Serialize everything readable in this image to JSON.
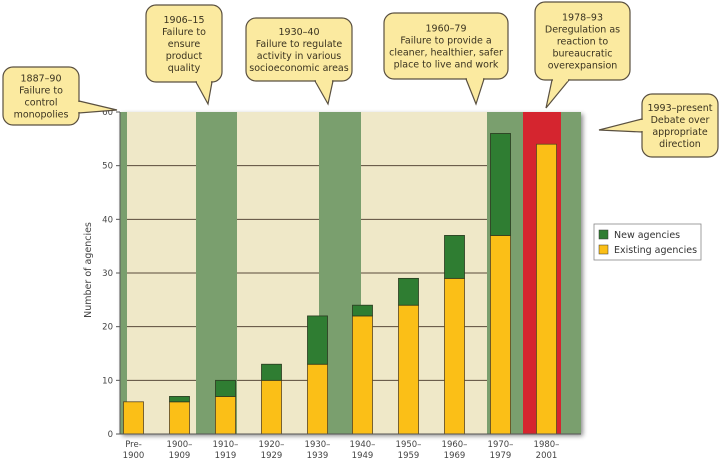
{
  "chart_data": {
    "type": "bar",
    "stacked": true,
    "title": "",
    "xlabel": "",
    "ylabel": "Number of agencies",
    "ylim": [
      0,
      60
    ],
    "yticks": [
      0,
      10,
      20,
      30,
      40,
      50,
      60
    ],
    "grid": true,
    "categories": [
      [
        "Pre-",
        "1900"
      ],
      [
        "1900–",
        "1909"
      ],
      [
        "1910–",
        "1919"
      ],
      [
        "1920–",
        "1929"
      ],
      [
        "1930–",
        "1939"
      ],
      [
        "1940–",
        "1949"
      ],
      [
        "1950–",
        "1959"
      ],
      [
        "1960–",
        "1969"
      ],
      [
        "1970–",
        "1979"
      ],
      [
        "1980–",
        "2001"
      ]
    ],
    "series": [
      {
        "name": "Existing agencies",
        "color": "#fbbf17",
        "values": [
          6,
          6,
          7,
          10,
          13,
          22,
          24,
          29,
          37,
          54
        ]
      },
      {
        "name": "New agencies",
        "color": "#2f7d32",
        "values": [
          0,
          1,
          3,
          3,
          9,
          2,
          5,
          8,
          19,
          0
        ]
      }
    ],
    "legend": {
      "placement": "right",
      "entries": [
        "New agencies",
        "Existing agencies"
      ]
    },
    "background_bands": [
      {
        "label": "1887–90",
        "color": "#7a9f6e"
      },
      {
        "label": "1906–15",
        "color": "#7a9f6e"
      },
      {
        "label": "1930–40",
        "color": "#7a9f6e"
      },
      {
        "label": "1960–79",
        "color": "#7a9f6e"
      },
      {
        "label": "1978–93",
        "color": "#d5252f"
      },
      {
        "label": "1993–present",
        "color": "#7a9f6e"
      }
    ],
    "annotations": [
      {
        "lines": [
          "1887–90",
          "Failure to",
          "control",
          "monopolies"
        ]
      },
      {
        "lines": [
          "1906–15",
          "Failure to",
          "ensure",
          "product",
          "quality"
        ]
      },
      {
        "lines": [
          "1930–40",
          "Failure to regulate",
          "activity in various",
          "socioeconomic areas"
        ]
      },
      {
        "lines": [
          "1960–79",
          "Failure to provide a",
          "cleaner, healthier, safer",
          "place to live and work"
        ]
      },
      {
        "lines": [
          "1978–93",
          "Deregulation as",
          "reaction to",
          "bureaucratic",
          "overexpansion"
        ]
      },
      {
        "lines": [
          "1993–present",
          "Debate over",
          "appropriate",
          "direction"
        ]
      }
    ]
  },
  "colors": {
    "plot_background": "#efe8c8",
    "era_green": "#7a9f6e",
    "era_red": "#d5252f",
    "callout_fill": "#fbeaa0",
    "callout_stroke": "#5a5040",
    "gridline": "#5a4a3a"
  }
}
